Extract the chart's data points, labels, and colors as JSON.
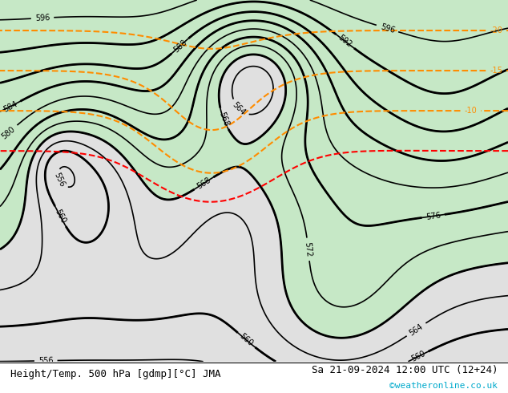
{
  "title_left": "Height/Temp. 500 hPa [gdmp][°C] JMA",
  "title_right": "Sa 21-09-2024 12:00 UTC (12+24)",
  "credit": "©weatheronline.co.uk",
  "label_fontsize": 7,
  "title_fontsize": 9,
  "credit_fontsize": 8
}
